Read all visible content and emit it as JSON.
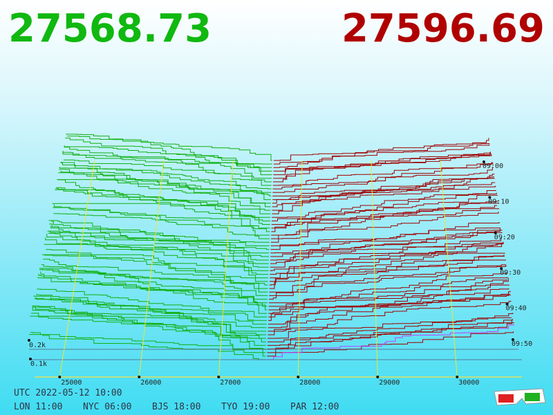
{
  "header": {
    "bid": "27568.73",
    "ask": "27596.69"
  },
  "price_ticks": [
    25000,
    26000,
    27000,
    28000,
    29000,
    30000
  ],
  "time_ticks": [
    "09:00",
    "09:10",
    "09:20",
    "09:30",
    "09:40",
    "09:50"
  ],
  "depth_ticks": [
    "0.2k",
    "0.1k"
  ],
  "footer": {
    "utc": "UTC 2022-05-12 10:00",
    "zones": [
      "LON 11:00",
      "NYC 06:00",
      "BJS 18:00",
      "TYO 19:00",
      "PAR 12:00"
    ]
  }
}
